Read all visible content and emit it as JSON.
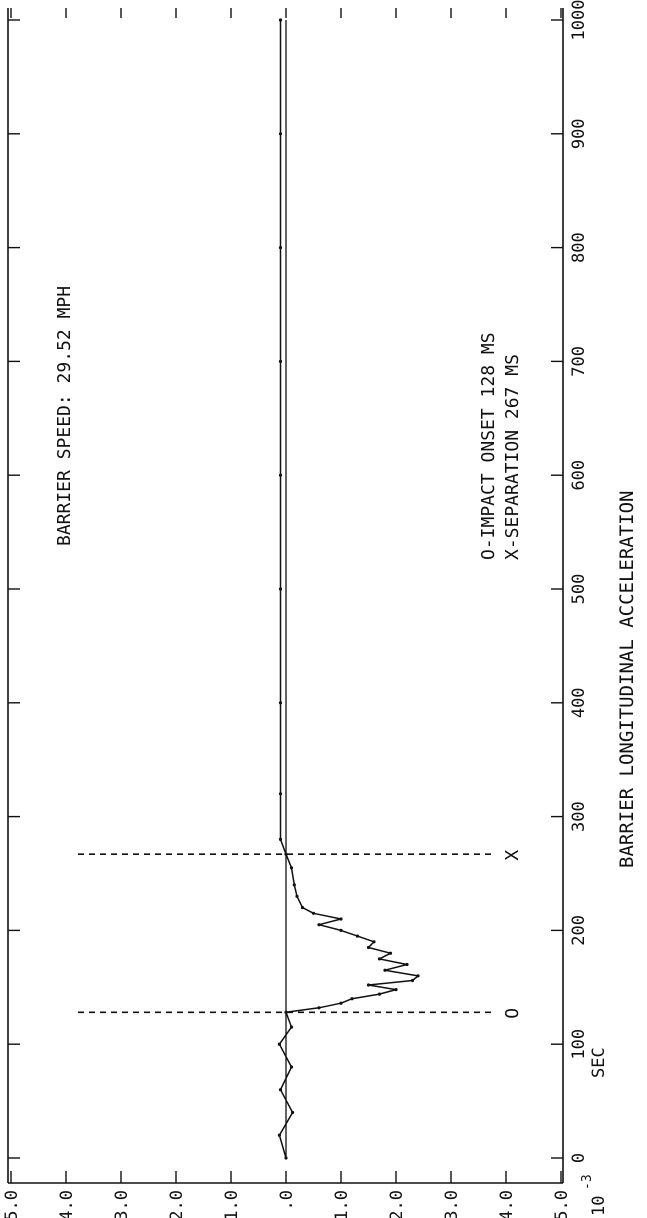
{
  "chart_data": {
    "type": "line",
    "title": "BARRIER LONGITUDINAL ACCELERATION",
    "annotation_speed": "BARRIER SPEED:  29.52 MPH",
    "legend": [
      {
        "marker": "O",
        "text": "O-IMPACT ONSET 128 MS"
      },
      {
        "marker": "X",
        "text": "X-SEPARATION   267 MS"
      }
    ],
    "xlabel_power": "10",
    "xlabel_exp": "-3",
    "xlabel_unit": "SEC",
    "xlim": [
      0,
      1000
    ],
    "ylim": [
      -5,
      5
    ],
    "x_ticks": [
      "0",
      "100",
      "200",
      "300",
      "400",
      "500",
      "600",
      "700",
      "800",
      "900",
      "1000"
    ],
    "y_ticks": [
      "5.0",
      "4.0",
      "3.0",
      "2.0",
      "1.0",
      ".0",
      "-1.0",
      "-2.0",
      "-3.0",
      "-4.0",
      "-5.0"
    ],
    "markers": [
      {
        "label": "O",
        "x": 128
      },
      {
        "label": "X",
        "x": 267
      }
    ],
    "grid": false,
    "series": [
      {
        "x": [
          0,
          20,
          40,
          60,
          80,
          100,
          115,
          128,
          132,
          136,
          140,
          144,
          148,
          152,
          156,
          160,
          165,
          170,
          175,
          180,
          185,
          190,
          195,
          200,
          205,
          210,
          215,
          220,
          230,
          240,
          255,
          267,
          280,
          320,
          400,
          500,
          600,
          700,
          800,
          900,
          1000
        ],
        "y": [
          0.0,
          0.12,
          -0.12,
          0.1,
          -0.1,
          0.12,
          -0.1,
          0.0,
          -0.6,
          -1.0,
          -1.2,
          -1.7,
          -2.0,
          -1.5,
          -2.3,
          -2.4,
          -1.8,
          -2.2,
          -1.7,
          -1.9,
          -1.5,
          -1.6,
          -1.3,
          -1.0,
          -0.6,
          -1.0,
          -0.5,
          -0.3,
          -0.2,
          -0.15,
          -0.1,
          0.0,
          0.1,
          0.1,
          0.1,
          0.1,
          0.1,
          0.1,
          0.1,
          0.1,
          0.1
        ]
      }
    ]
  }
}
